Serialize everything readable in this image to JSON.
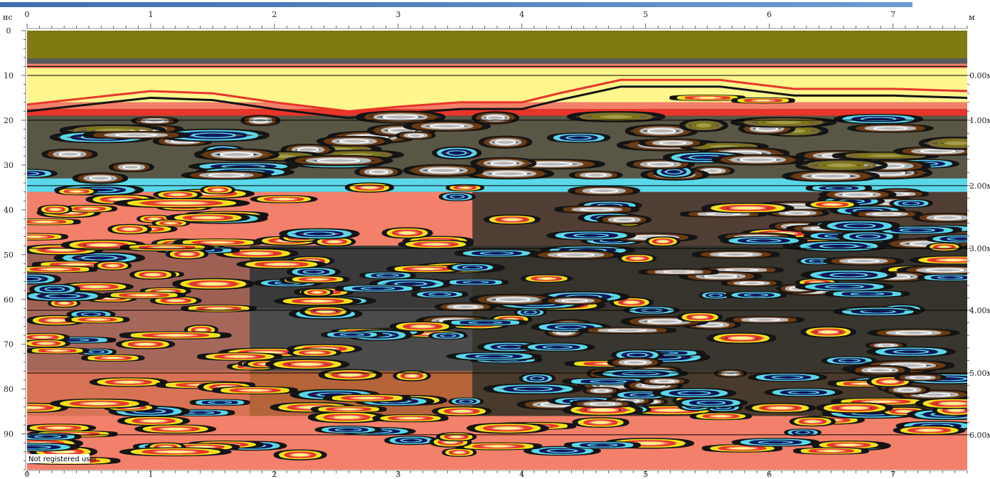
{
  "chart_data": {
    "type": "heatmap",
    "title": "",
    "x_unit": "м",
    "y_unit": "нс",
    "xlim": [
      0,
      7.6
    ],
    "ylim": [
      0,
      98
    ],
    "depth_max_m": 6.6,
    "x_ticks_top": [
      "0",
      "1",
      "2",
      "3",
      "4",
      "5",
      "6",
      "7"
    ],
    "x_ticks_bottom": [
      "0",
      "1",
      "2",
      "3",
      "4",
      "5",
      "6",
      "7"
    ],
    "y_ticks": [
      "0",
      "10",
      "20",
      "30",
      "40",
      "50",
      "60",
      "70",
      "80",
      "90"
    ],
    "depth_ticks": [
      "0.00м",
      "1.00м",
      "2.00м",
      "3.00м",
      "4.00м",
      "5.00м",
      "6.00м"
    ],
    "depth_values_m": [
      0,
      1,
      2,
      3,
      4,
      5,
      6
    ],
    "depth_line_ns": [
      10,
      20,
      34.6,
      48.6,
      62.4,
      76.4,
      90.2
    ],
    "surface_line_ns": 8,
    "watermark": "Not registered user",
    "palette": {
      "olive": "#807a12",
      "cream": "#fff68c",
      "salmon": "#f2806a",
      "red": "#e8352a",
      "yellow": "#f5e21c",
      "black": "#141414",
      "brown": "#6b3a12",
      "gray": "#b8b8b8",
      "cyan": "#5ad8ea",
      "navy": "#10145a",
      "header": "#4f81bd"
    }
  }
}
